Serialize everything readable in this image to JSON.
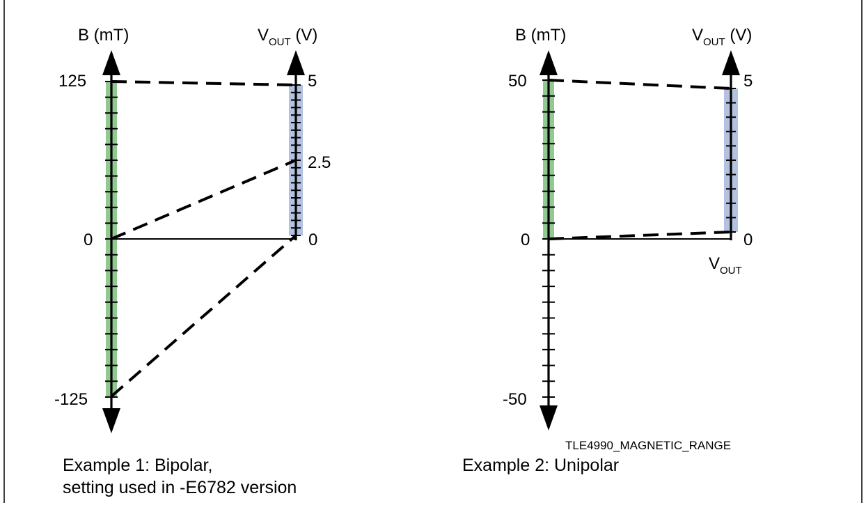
{
  "diagrams": [
    {
      "b_axis": {
        "label": "B (mT)",
        "ticks": [
          {
            "label": "125",
            "value": 125
          },
          {
            "label": "0",
            "value": 0
          },
          {
            "label": "-125",
            "value": -125
          }
        ],
        "highlight_range": [
          -125,
          125
        ]
      },
      "vout_axis": {
        "label_main": "V",
        "label_sub": "OUT",
        "label_unit": " (V)",
        "ticks": [
          {
            "label": "5",
            "value": 5
          },
          {
            "label": "2.5",
            "value": 2.5
          },
          {
            "label": "0",
            "value": 0
          }
        ],
        "highlight_range": [
          0,
          5
        ]
      },
      "mappings": [
        {
          "b": 125,
          "vout": 5
        },
        {
          "b": 0,
          "vout": 2.5
        },
        {
          "b": -125,
          "vout": 0
        }
      ],
      "caption_lines": [
        "Example 1: Bipolar,",
        "setting used in -E6782 version"
      ]
    },
    {
      "b_axis": {
        "label": "B (mT)",
        "ticks": [
          {
            "label": "50",
            "value": 50
          },
          {
            "label": "0",
            "value": 0
          },
          {
            "label": "-50",
            "value": -50
          }
        ],
        "highlight_range": [
          0,
          50
        ]
      },
      "vout_axis": {
        "label_main": "V",
        "label_sub": "OUT",
        "label_unit": " (V)",
        "ticks": [
          {
            "label": "5",
            "value": 5
          },
          {
            "label": "0",
            "value": 0
          }
        ],
        "highlight_range": [
          0,
          5
        ],
        "bottom_label_main": "V",
        "bottom_label_sub": "OUT"
      },
      "mappings": [
        {
          "b": 50,
          "vout": 5
        },
        {
          "b": 0,
          "vout": 0
        }
      ],
      "caption_lines": [
        "Example 2: Unipolar"
      ]
    }
  ],
  "figure_id": "TLE4990_MAGNETIC_RANGE",
  "colors": {
    "b_highlight": "#92c993",
    "vout_highlight": "#b4c2e0",
    "line": "#000000"
  }
}
